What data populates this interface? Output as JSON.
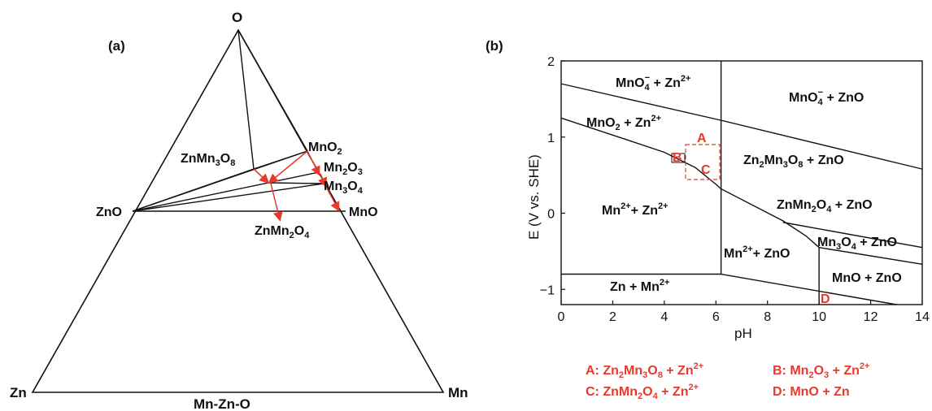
{
  "panel_a": {
    "label": "(a)",
    "title": "Mn-Zn-O",
    "vertices": {
      "top": "O",
      "left": "Zn",
      "right": "Mn"
    },
    "phases": {
      "zno": "ZnO",
      "mno2": "MnO2",
      "mn2o3": "Mn2O3",
      "mn3o4": "Mn3O4",
      "mno": "MnO",
      "znmn3o8": "ZnMn3O8",
      "znmn2o4": "ZnMn2O4"
    }
  },
  "panel_b": {
    "label": "(b)",
    "region_labels": {
      "mno4_zn": "MnO4− + Zn2+",
      "mno4_zno": "MnO4− + ZnO",
      "mno2_zn": "MnO2 + Zn2+",
      "zn2mn3o8_zno": "Zn2Mn3O8 + ZnO",
      "znmn2o4_zno": "ZnMn2O4 + ZnO",
      "mn_zn": "Mn2++ Zn2+",
      "mn3o4_zno": "Mn3O4 + ZnO",
      "mn_zno": "Mn2++ ZnO",
      "mno_zno": "MnO + ZnO",
      "zn_mn": "Zn + Mn2+"
    },
    "point_labels": {
      "a": "A",
      "b": "B",
      "c": "C",
      "d": "D"
    },
    "legend": [
      {
        "key": "A",
        "text": "A: Zn2Mn3O8 + Zn2+"
      },
      {
        "key": "B",
        "text": "B: Mn2O3 + Zn2+"
      },
      {
        "key": "C",
        "text": "C: ZnMn2O4 + Zn2+"
      },
      {
        "key": "D",
        "text": "D: MnO + Zn"
      }
    ],
    "accent_color": "#e8392d"
  },
  "chart_data": {
    "type": "line",
    "xlabel": "pH",
    "ylabel": "E (V vs. SHE)",
    "xlim": [
      0,
      14
    ],
    "ylim": [
      -1.2,
      2
    ],
    "x_ticks": [
      "0",
      "2",
      "4",
      "6",
      "8",
      "10",
      "12",
      "14"
    ],
    "y_ticks": [
      "2",
      "1",
      "0",
      "−1"
    ],
    "boundaries": [
      {
        "name": "",
        "x": [
          0,
          6.2,
          14
        ],
        "y": [
          1.7,
          1.22,
          0.58
        ]
      },
      {
        "name": "",
        "x": [
          0,
          2.5,
          4.0,
          5.2,
          6.0,
          6.2,
          8.6,
          9.5,
          10.0
        ],
        "y": [
          1.25,
          0.97,
          0.8,
          0.6,
          0.38,
          0.32,
          -0.1,
          -0.3,
          -0.45
        ]
      },
      {
        "name": "",
        "x": [
          8.6,
          14
        ],
        "y": [
          -0.12,
          -0.45
        ]
      },
      {
        "name": "",
        "x": [
          10.0,
          14
        ],
        "y": [
          -0.45,
          -0.67
        ]
      },
      {
        "name": "",
        "x": [
          6.2,
          6.2
        ],
        "y": [
          2.0,
          -0.8
        ]
      },
      {
        "name": "",
        "x": [
          10.0,
          10.0
        ],
        "y": [
          -0.45,
          -1.2
        ]
      },
      {
        "name": "",
        "x": [
          0,
          6.2
        ],
        "y": [
          -0.8,
          -0.8
        ]
      },
      {
        "name": "",
        "x": [
          6.2,
          13.0
        ],
        "y": [
          -0.8,
          -1.2
        ]
      }
    ]
  }
}
